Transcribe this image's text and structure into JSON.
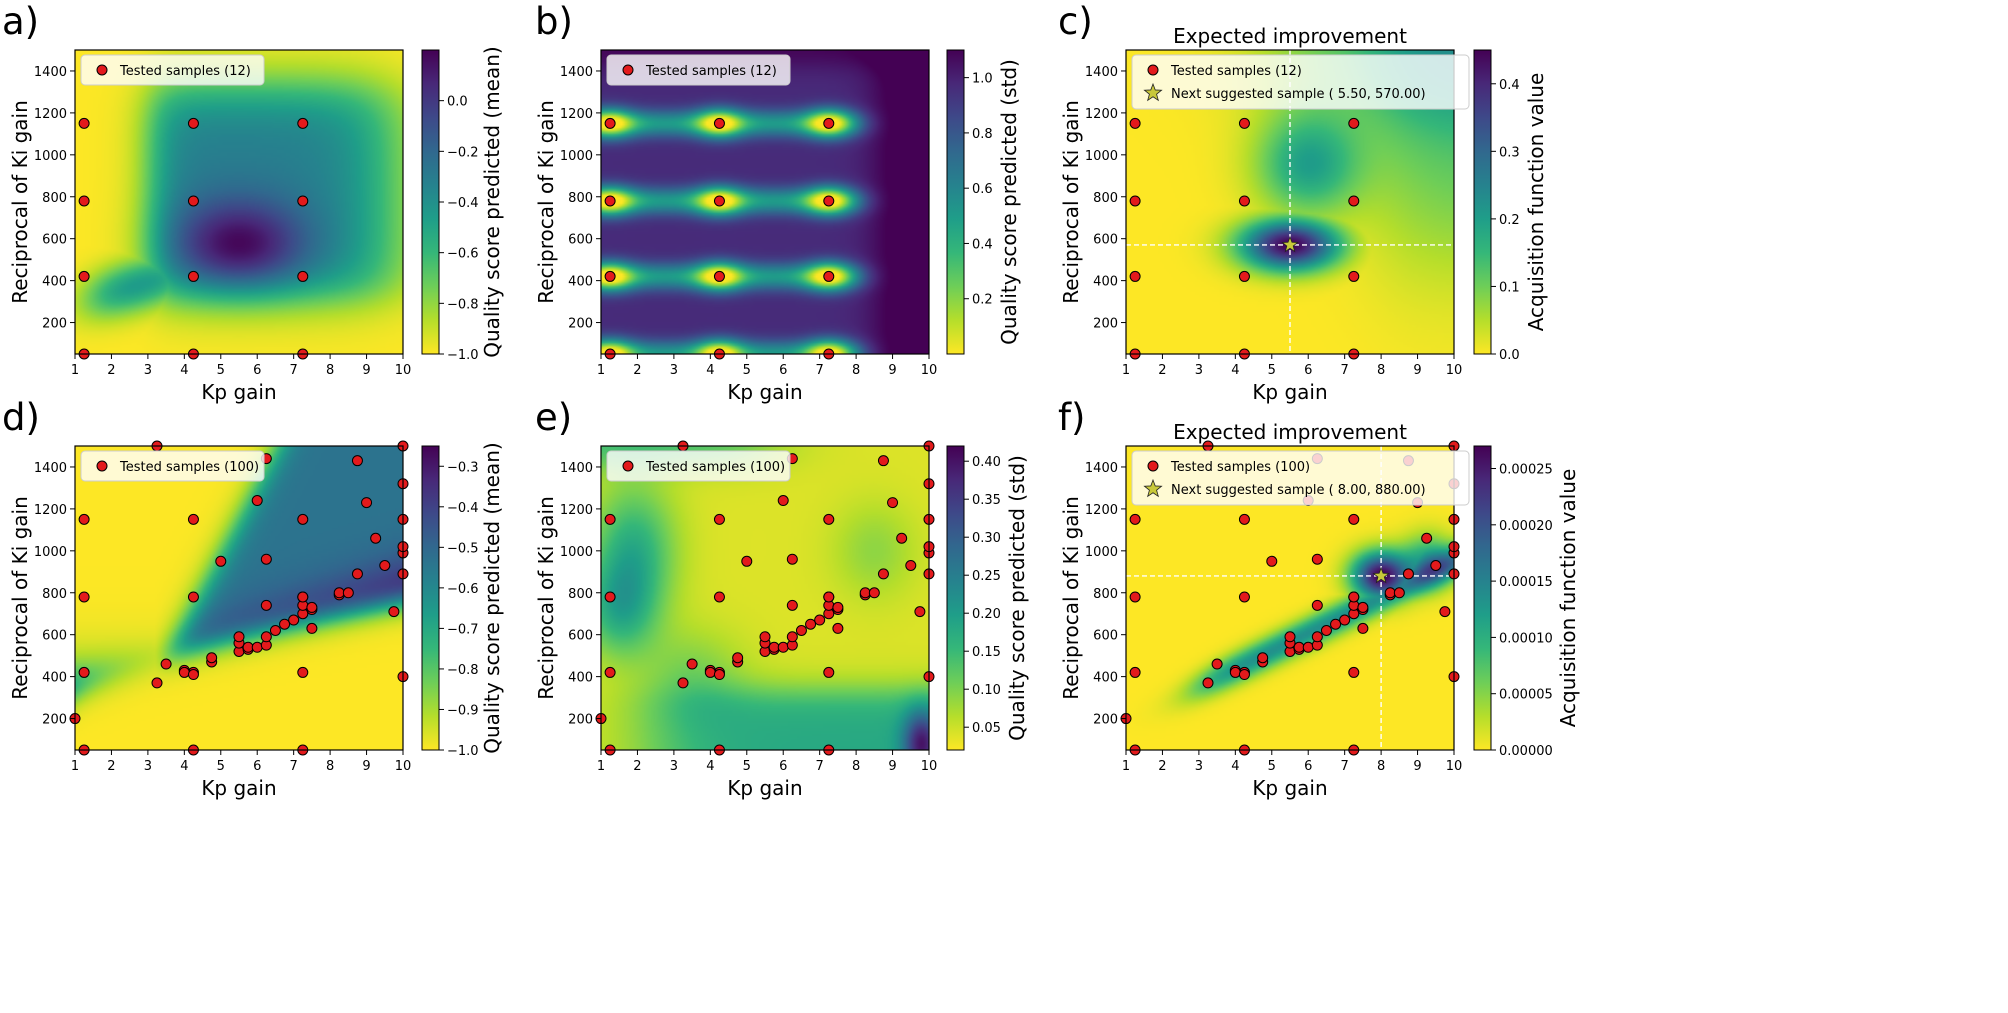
{
  "colors": {
    "viridis": [
      "#fde725",
      "#b5de2b",
      "#6ece58",
      "#35b779",
      "#1f9e89",
      "#26828e",
      "#31688e",
      "#3e4989",
      "#482878",
      "#440154"
    ],
    "marker": "#e31a1c",
    "star": "#c8c83a",
    "guide": "#ffffff"
  },
  "chart_data": [
    {
      "type": "heatmap",
      "panel_label": "a)",
      "title": "",
      "xlabel": "Kp gain",
      "ylabel": "Reciprocal of Ki gain",
      "colorbar_label": "Quality score predicted (mean)",
      "xlim": [
        1,
        10
      ],
      "ylim": [
        50,
        1500
      ],
      "clim": [
        -1.0,
        0.2
      ],
      "x_ticks": [
        "1",
        "2",
        "3",
        "4",
        "5",
        "6",
        "7",
        "8",
        "9",
        "10"
      ],
      "y_ticks": [
        "200",
        "400",
        "600",
        "800",
        "1000",
        "1200",
        "1400"
      ],
      "colorbar_ticks": [
        "−1.0",
        "−0.8",
        "−0.6",
        "−0.4",
        "−0.2",
        "0.0"
      ],
      "legend": [
        "Tested samples (12)"
      ],
      "points": [
        [
          1.25,
          50
        ],
        [
          1.25,
          420
        ],
        [
          1.25,
          780
        ],
        [
          1.25,
          1150
        ],
        [
          4.25,
          50
        ],
        [
          4.25,
          420
        ],
        [
          4.25,
          780
        ],
        [
          4.25,
          1150
        ],
        [
          7.25,
          50
        ],
        [
          7.25,
          420
        ],
        [
          7.25,
          780
        ],
        [
          7.25,
          1150
        ]
      ]
    },
    {
      "type": "heatmap",
      "panel_label": "b)",
      "title": "",
      "xlabel": "Kp gain",
      "ylabel": "Reciprocal of Ki gain",
      "colorbar_label": "Quality score predicted (std)",
      "xlim": [
        1,
        10
      ],
      "ylim": [
        50,
        1500
      ],
      "clim": [
        0.0,
        1.1
      ],
      "x_ticks": [
        "1",
        "2",
        "3",
        "4",
        "5",
        "6",
        "7",
        "8",
        "9",
        "10"
      ],
      "y_ticks": [
        "200",
        "400",
        "600",
        "800",
        "1000",
        "1200",
        "1400"
      ],
      "colorbar_ticks": [
        "0.2",
        "0.4",
        "0.6",
        "0.8",
        "1.0"
      ],
      "legend": [
        "Tested samples (12)"
      ],
      "points": [
        [
          1.25,
          50
        ],
        [
          1.25,
          420
        ],
        [
          1.25,
          780
        ],
        [
          1.25,
          1150
        ],
        [
          4.25,
          50
        ],
        [
          4.25,
          420
        ],
        [
          4.25,
          780
        ],
        [
          4.25,
          1150
        ],
        [
          7.25,
          50
        ],
        [
          7.25,
          420
        ],
        [
          7.25,
          780
        ],
        [
          7.25,
          1150
        ]
      ]
    },
    {
      "type": "heatmap",
      "panel_label": "c)",
      "title": "Expected improvement",
      "xlabel": "Kp gain",
      "ylabel": "Reciprocal of Ki gain",
      "colorbar_label": "Acquisition function value",
      "xlim": [
        1,
        10
      ],
      "ylim": [
        50,
        1500
      ],
      "clim": [
        0.0,
        0.45
      ],
      "x_ticks": [
        "1",
        "2",
        "3",
        "4",
        "5",
        "6",
        "7",
        "8",
        "9",
        "10"
      ],
      "y_ticks": [
        "200",
        "400",
        "600",
        "800",
        "1000",
        "1200",
        "1400"
      ],
      "colorbar_ticks": [
        "0.0",
        "0.1",
        "0.2",
        "0.3",
        "0.4"
      ],
      "legend": [
        "Tested samples (12)",
        "Next suggested sample ( 5.50,  570.00)"
      ],
      "next_sample": [
        5.5,
        570
      ],
      "points": [
        [
          1.25,
          50
        ],
        [
          1.25,
          420
        ],
        [
          1.25,
          780
        ],
        [
          1.25,
          1150
        ],
        [
          4.25,
          50
        ],
        [
          4.25,
          420
        ],
        [
          4.25,
          780
        ],
        [
          4.25,
          1150
        ],
        [
          7.25,
          50
        ],
        [
          7.25,
          420
        ],
        [
          7.25,
          780
        ],
        [
          7.25,
          1150
        ]
      ]
    },
    {
      "type": "heatmap",
      "panel_label": "d)",
      "title": "",
      "xlabel": "Kp gain",
      "ylabel": "Reciprocal of Ki gain",
      "colorbar_label": "Quality score predicted (mean)",
      "xlim": [
        1,
        10
      ],
      "ylim": [
        50,
        1500
      ],
      "clim": [
        -1.0,
        -0.25
      ],
      "x_ticks": [
        "1",
        "2",
        "3",
        "4",
        "5",
        "6",
        "7",
        "8",
        "9",
        "10"
      ],
      "y_ticks": [
        "200",
        "400",
        "600",
        "800",
        "1000",
        "1200",
        "1400"
      ],
      "colorbar_ticks": [
        "−1.0",
        "−0.9",
        "−0.8",
        "−0.7",
        "−0.6",
        "−0.5",
        "−0.4",
        "−0.3"
      ],
      "legend": [
        "Tested samples (100)"
      ],
      "points": [
        [
          1.25,
          50
        ],
        [
          1.25,
          420
        ],
        [
          1.25,
          780
        ],
        [
          1.25,
          1150
        ],
        [
          4.25,
          50
        ],
        [
          4.25,
          420
        ],
        [
          4.25,
          780
        ],
        [
          4.25,
          1150
        ],
        [
          7.25,
          50
        ],
        [
          7.25,
          420
        ],
        [
          7.25,
          780
        ],
        [
          7.25,
          1150
        ],
        [
          1.0,
          200
        ],
        [
          3.25,
          1500
        ],
        [
          3.25,
          370
        ],
        [
          3.5,
          460
        ],
        [
          4.0,
          430
        ],
        [
          4.0,
          420
        ],
        [
          4.25,
          410
        ],
        [
          4.75,
          470
        ],
        [
          4.75,
          490
        ],
        [
          5.0,
          950
        ],
        [
          5.5,
          520
        ],
        [
          5.5,
          560
        ],
        [
          5.5,
          590
        ],
        [
          5.75,
          530
        ],
        [
          5.75,
          540
        ],
        [
          6.0,
          540
        ],
        [
          6.0,
          1240
        ],
        [
          6.25,
          550
        ],
        [
          6.25,
          590
        ],
        [
          6.25,
          960
        ],
        [
          6.25,
          740
        ],
        [
          6.25,
          1440
        ],
        [
          6.5,
          620
        ],
        [
          6.75,
          650
        ],
        [
          7.0,
          670
        ],
        [
          7.25,
          700
        ],
        [
          7.25,
          740
        ],
        [
          7.25,
          780
        ],
        [
          7.5,
          630
        ],
        [
          7.5,
          720
        ],
        [
          7.5,
          730
        ],
        [
          8.25,
          790
        ],
        [
          8.25,
          800
        ],
        [
          8.5,
          800
        ],
        [
          8.75,
          890
        ],
        [
          8.75,
          1430
        ],
        [
          9.0,
          1230
        ],
        [
          9.25,
          1060
        ],
        [
          9.5,
          930
        ],
        [
          9.75,
          710
        ],
        [
          10.0,
          400
        ],
        [
          10.0,
          890
        ],
        [
          10.0,
          990
        ],
        [
          10.0,
          1020
        ],
        [
          10.0,
          1150
        ],
        [
          10.0,
          1320
        ],
        [
          10.0,
          1500
        ]
      ]
    },
    {
      "type": "heatmap",
      "panel_label": "e)",
      "title": "",
      "xlabel": "Kp gain",
      "ylabel": "Reciprocal of Ki gain",
      "colorbar_label": "Quality score predicted (std)",
      "xlim": [
        1,
        10
      ],
      "ylim": [
        50,
        1500
      ],
      "clim": [
        0.02,
        0.42
      ],
      "x_ticks": [
        "1",
        "2",
        "3",
        "4",
        "5",
        "6",
        "7",
        "8",
        "9",
        "10"
      ],
      "y_ticks": [
        "200",
        "400",
        "600",
        "800",
        "1000",
        "1200",
        "1400"
      ],
      "colorbar_ticks": [
        "0.05",
        "0.10",
        "0.15",
        "0.20",
        "0.25",
        "0.30",
        "0.35",
        "0.40"
      ],
      "legend": [
        "Tested samples (100)"
      ],
      "points": [
        [
          1.25,
          50
        ],
        [
          1.25,
          420
        ],
        [
          1.25,
          780
        ],
        [
          1.25,
          1150
        ],
        [
          4.25,
          50
        ],
        [
          4.25,
          420
        ],
        [
          4.25,
          780
        ],
        [
          4.25,
          1150
        ],
        [
          7.25,
          50
        ],
        [
          7.25,
          420
        ],
        [
          7.25,
          780
        ],
        [
          7.25,
          1150
        ],
        [
          1.0,
          200
        ],
        [
          3.25,
          1500
        ],
        [
          3.25,
          370
        ],
        [
          3.5,
          460
        ],
        [
          4.0,
          430
        ],
        [
          4.0,
          420
        ],
        [
          4.25,
          410
        ],
        [
          4.75,
          470
        ],
        [
          4.75,
          490
        ],
        [
          5.0,
          950
        ],
        [
          5.5,
          520
        ],
        [
          5.5,
          560
        ],
        [
          5.5,
          590
        ],
        [
          5.75,
          530
        ],
        [
          5.75,
          540
        ],
        [
          6.0,
          540
        ],
        [
          6.0,
          1240
        ],
        [
          6.25,
          550
        ],
        [
          6.25,
          590
        ],
        [
          6.25,
          960
        ],
        [
          6.25,
          740
        ],
        [
          6.25,
          1440
        ],
        [
          6.5,
          620
        ],
        [
          6.75,
          650
        ],
        [
          7.0,
          670
        ],
        [
          7.25,
          700
        ],
        [
          7.25,
          740
        ],
        [
          7.25,
          780
        ],
        [
          7.5,
          630
        ],
        [
          7.5,
          720
        ],
        [
          7.5,
          730
        ],
        [
          8.25,
          790
        ],
        [
          8.25,
          800
        ],
        [
          8.5,
          800
        ],
        [
          8.75,
          890
        ],
        [
          8.75,
          1430
        ],
        [
          9.0,
          1230
        ],
        [
          9.25,
          1060
        ],
        [
          9.5,
          930
        ],
        [
          9.75,
          710
        ],
        [
          10.0,
          400
        ],
        [
          10.0,
          890
        ],
        [
          10.0,
          990
        ],
        [
          10.0,
          1020
        ],
        [
          10.0,
          1150
        ],
        [
          10.0,
          1320
        ],
        [
          10.0,
          1500
        ]
      ]
    },
    {
      "type": "heatmap",
      "panel_label": "f)",
      "title": "Expected improvement",
      "xlabel": "Kp gain",
      "ylabel": "Reciprocal of Ki gain",
      "colorbar_label": "Acquisition function value",
      "xlim": [
        1,
        10
      ],
      "ylim": [
        50,
        1500
      ],
      "clim": [
        0.0,
        0.00027
      ],
      "x_ticks": [
        "1",
        "2",
        "3",
        "4",
        "5",
        "6",
        "7",
        "8",
        "9",
        "10"
      ],
      "y_ticks": [
        "200",
        "400",
        "600",
        "800",
        "1000",
        "1200",
        "1400"
      ],
      "colorbar_ticks": [
        "0.00000",
        "0.00005",
        "0.00010",
        "0.00015",
        "0.00020",
        "0.00025"
      ],
      "legend": [
        "Tested samples (100)",
        "Next suggested sample ( 8.00,  880.00)"
      ],
      "next_sample": [
        8.0,
        880
      ],
      "points": [
        [
          1.25,
          50
        ],
        [
          1.25,
          420
        ],
        [
          1.25,
          780
        ],
        [
          1.25,
          1150
        ],
        [
          4.25,
          50
        ],
        [
          4.25,
          420
        ],
        [
          4.25,
          780
        ],
        [
          4.25,
          1150
        ],
        [
          7.25,
          50
        ],
        [
          7.25,
          420
        ],
        [
          7.25,
          780
        ],
        [
          7.25,
          1150
        ],
        [
          1.0,
          200
        ],
        [
          3.25,
          1500
        ],
        [
          3.25,
          370
        ],
        [
          3.5,
          460
        ],
        [
          4.0,
          430
        ],
        [
          4.0,
          420
        ],
        [
          4.25,
          410
        ],
        [
          4.75,
          470
        ],
        [
          4.75,
          490
        ],
        [
          5.0,
          950
        ],
        [
          5.5,
          520
        ],
        [
          5.5,
          560
        ],
        [
          5.5,
          590
        ],
        [
          5.75,
          530
        ],
        [
          5.75,
          540
        ],
        [
          6.0,
          540
        ],
        [
          6.0,
          1240
        ],
        [
          6.25,
          550
        ],
        [
          6.25,
          590
        ],
        [
          6.25,
          960
        ],
        [
          6.25,
          740
        ],
        [
          6.25,
          1440
        ],
        [
          6.5,
          620
        ],
        [
          6.75,
          650
        ],
        [
          7.0,
          670
        ],
        [
          7.25,
          700
        ],
        [
          7.25,
          740
        ],
        [
          7.25,
          780
        ],
        [
          7.5,
          630
        ],
        [
          7.5,
          720
        ],
        [
          7.5,
          730
        ],
        [
          8.25,
          790
        ],
        [
          8.25,
          800
        ],
        [
          8.5,
          800
        ],
        [
          8.75,
          890
        ],
        [
          8.75,
          1430
        ],
        [
          9.0,
          1230
        ],
        [
          9.25,
          1060
        ],
        [
          9.5,
          930
        ],
        [
          9.75,
          710
        ],
        [
          10.0,
          400
        ],
        [
          10.0,
          890
        ],
        [
          10.0,
          990
        ],
        [
          10.0,
          1020
        ],
        [
          10.0,
          1150
        ],
        [
          10.0,
          1320
        ],
        [
          10.0,
          1500
        ]
      ]
    }
  ]
}
